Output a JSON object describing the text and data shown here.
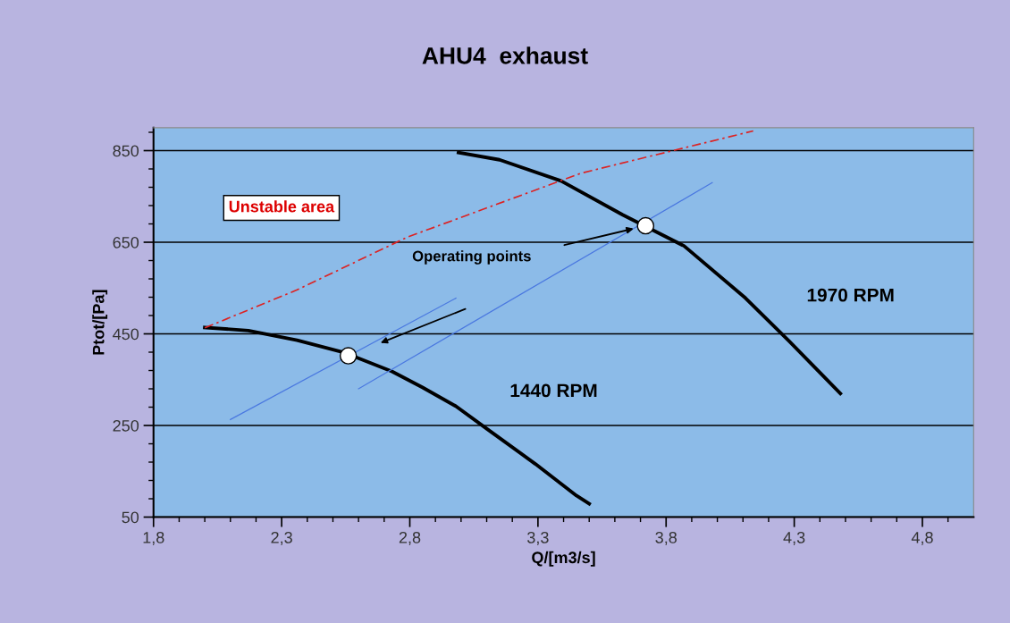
{
  "chart_data": {
    "type": "line",
    "title": "AHU4  exhaust",
    "xlabel": "Q/[m3/s]",
    "ylabel": "Ptot/[Pa]",
    "xlim": [
      1.8,
      5.0
    ],
    "ylim": [
      50,
      900
    ],
    "xticks": [
      {
        "value": 1.8,
        "label": "1,8"
      },
      {
        "value": 2.3,
        "label": "2,3"
      },
      {
        "value": 2.8,
        "label": "2,8"
      },
      {
        "value": 3.3,
        "label": "3,3"
      },
      {
        "value": 3.8,
        "label": "3,8"
      },
      {
        "value": 4.3,
        "label": "4,3"
      },
      {
        "value": 4.8,
        "label": "4,8"
      },
      {
        "value": 1.9,
        "label": null
      },
      {
        "value": 2.0,
        "label": null
      },
      {
        "value": 2.1,
        "label": null
      },
      {
        "value": 2.2,
        "label": null
      },
      {
        "value": 2.4,
        "label": null
      },
      {
        "value": 2.5,
        "label": null
      },
      {
        "value": 2.6,
        "label": null
      },
      {
        "value": 2.7,
        "label": null
      },
      {
        "value": 2.9,
        "label": null
      },
      {
        "value": 3.0,
        "label": null
      },
      {
        "value": 3.1,
        "label": null
      },
      {
        "value": 3.2,
        "label": null
      },
      {
        "value": 3.4,
        "label": null
      },
      {
        "value": 3.5,
        "label": null
      },
      {
        "value": 3.6,
        "label": null
      },
      {
        "value": 3.7,
        "label": null
      },
      {
        "value": 3.9,
        "label": null
      },
      {
        "value": 4.0,
        "label": null
      },
      {
        "value": 4.1,
        "label": null
      },
      {
        "value": 4.2,
        "label": null
      },
      {
        "value": 4.4,
        "label": null
      },
      {
        "value": 4.5,
        "label": null
      },
      {
        "value": 4.6,
        "label": null
      },
      {
        "value": 4.7,
        "label": null
      },
      {
        "value": 4.9,
        "label": null
      }
    ],
    "yticks": [
      50,
      250,
      450,
      650,
      850,
      {
        "value": 90,
        "label": null
      },
      {
        "value": 130,
        "label": null
      },
      {
        "value": 170,
        "label": null
      },
      {
        "value": 210,
        "label": null
      },
      {
        "value": 290,
        "label": null
      },
      {
        "value": 330,
        "label": null
      },
      {
        "value": 370,
        "label": null
      },
      {
        "value": 410,
        "label": null
      },
      {
        "value": 490,
        "label": null
      },
      {
        "value": 530,
        "label": null
      },
      {
        "value": 570,
        "label": null
      },
      {
        "value": 610,
        "label": null
      },
      {
        "value": 690,
        "label": null
      },
      {
        "value": 730,
        "label": null
      },
      {
        "value": 770,
        "label": null
      },
      {
        "value": 810,
        "label": null
      },
      {
        "value": 890,
        "label": null
      }
    ],
    "grid": "y",
    "series": [
      {
        "color": "#000000",
        "x": [
          2.0,
          2.17,
          2.36,
          2.54,
          2.73,
          2.85,
          2.98,
          3.1,
          3.29,
          3.45,
          3.5
        ],
        "values": [
          464,
          457,
          436,
          410,
          368,
          333,
          292,
          243,
          166,
          97,
          79
        ]
      },
      {
        "color": "#000000",
        "x": [
          2.99,
          3.15,
          3.39,
          3.63,
          3.87,
          4.11,
          4.28,
          4.48
        ],
        "values": [
          846,
          830,
          784,
          710,
          642,
          528,
          434,
          320
        ]
      },
      {
        "color": "#dd2222",
        "line_style": "dashed",
        "x": [
          2.0,
          2.36,
          2.79,
          3.47,
          4.14
        ],
        "values": [
          463,
          546,
          661,
          801,
          893
        ]
      },
      {
        "color": "#4a78e0",
        "x": [
          2.1,
          2.98
        ],
        "values": [
          263,
          528
        ]
      },
      {
        "color": "#4a78e0",
        "x": [
          2.6,
          3.98
        ],
        "values": [
          330,
          780
        ]
      },
      {
        "type": "scatter",
        "color": "#ffffff",
        "marker": "circle",
        "x": [
          2.56,
          3.72
        ],
        "values": [
          402,
          686
        ]
      }
    ],
    "annotations": [
      "Unstable area",
      "Operating points",
      "1440 RPM",
      "1970 RPM"
    ]
  }
}
